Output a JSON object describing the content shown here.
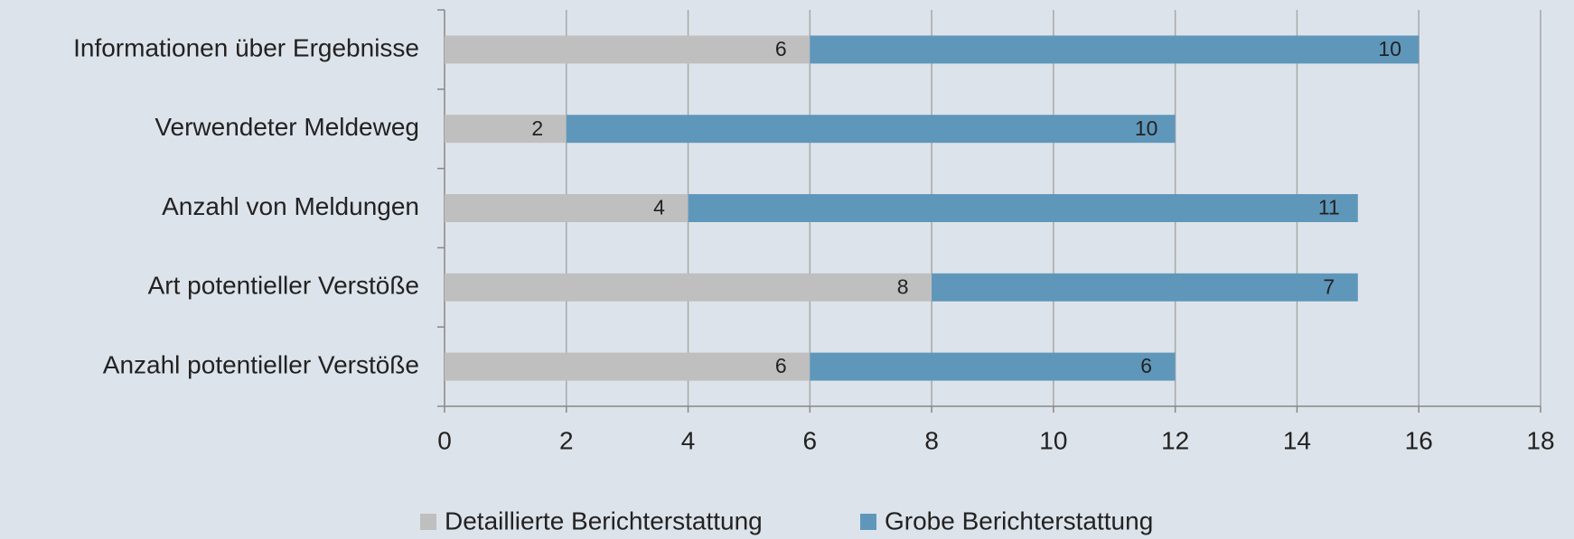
{
  "chart_data": {
    "type": "stacked_barh",
    "categories": [
      "Informationen über Ergebnisse",
      "Verwendeter Meldeweg",
      "Anzahl von Meldungen",
      "Art potentieller Verstöße",
      "Anzahl potentieller Verstöße"
    ],
    "series": [
      {
        "name": "Detaillierte Berichterstattung",
        "color": "#bfbfbf",
        "values": [
          6,
          2,
          4,
          8,
          6
        ]
      },
      {
        "name": "Grobe Berichterstattung",
        "color": "#5f97bb",
        "values": [
          10,
          10,
          11,
          7,
          6
        ]
      }
    ],
    "xlim": [
      0,
      18
    ],
    "xticks": [
      0,
      2,
      4,
      6,
      8,
      10,
      12,
      14,
      16,
      18
    ],
    "grid": true,
    "legend": "bottom"
  }
}
